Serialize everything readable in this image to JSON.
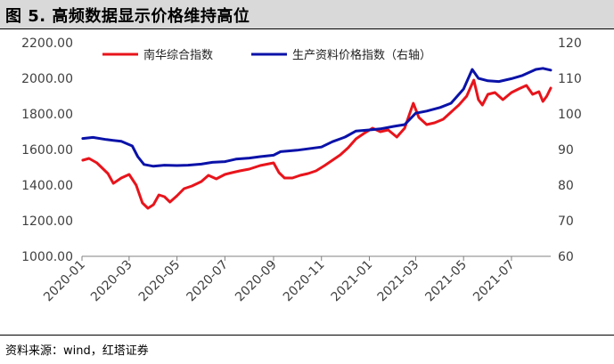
{
  "header": {
    "title": "图 5. 高频数据显示价格维持高位"
  },
  "footer": {
    "source": "资料来源：wind，红塔证券"
  },
  "colors": {
    "red": "#e8141b",
    "blue": "#0a12a8"
  },
  "chart_data": {
    "type": "line",
    "title": "图 5. 高频数据显示价格维持高位",
    "xlabel": "",
    "ylabel_left": "",
    "ylabel_right": "",
    "x_ticks": [
      "2020-01",
      "2020-03",
      "2020-05",
      "2020-07",
      "2020-09",
      "2020-11",
      "2021-01",
      "2021-03",
      "2021-05",
      "2021-07"
    ],
    "x_range": [
      "2020-01-01",
      "2021-08-20"
    ],
    "y_left_ticks": [
      "1000.00",
      "1200.00",
      "1400.00",
      "1600.00",
      "1800.00",
      "2000.00",
      "2200.00"
    ],
    "y_left_range": [
      1000,
      2200
    ],
    "y_right_ticks": [
      "60",
      "70",
      "80",
      "90",
      "100",
      "110",
      "120"
    ],
    "y_right_range": [
      60,
      120
    ],
    "grid": false,
    "legend_position": "top",
    "series": [
      {
        "name": "南华综合指数",
        "axis": "left",
        "color": "#e8141b",
        "points": [
          [
            "2020-01-02",
            1540
          ],
          [
            "2020-01-10",
            1550
          ],
          [
            "2020-01-20",
            1525
          ],
          [
            "2020-02-03",
            1465
          ],
          [
            "2020-02-10",
            1410
          ],
          [
            "2020-02-20",
            1440
          ],
          [
            "2020-03-01",
            1460
          ],
          [
            "2020-03-10",
            1400
          ],
          [
            "2020-03-18",
            1300
          ],
          [
            "2020-03-25",
            1270
          ],
          [
            "2020-04-01",
            1290
          ],
          [
            "2020-04-08",
            1345
          ],
          [
            "2020-04-15",
            1335
          ],
          [
            "2020-04-22",
            1305
          ],
          [
            "2020-05-01",
            1340
          ],
          [
            "2020-05-10",
            1380
          ],
          [
            "2020-05-20",
            1395
          ],
          [
            "2020-06-01",
            1420
          ],
          [
            "2020-06-10",
            1455
          ],
          [
            "2020-06-20",
            1435
          ],
          [
            "2020-07-01",
            1460
          ],
          [
            "2020-07-10",
            1470
          ],
          [
            "2020-07-20",
            1480
          ],
          [
            "2020-08-01",
            1490
          ],
          [
            "2020-08-15",
            1510
          ],
          [
            "2020-09-01",
            1525
          ],
          [
            "2020-09-08",
            1470
          ],
          [
            "2020-09-15",
            1440
          ],
          [
            "2020-09-25",
            1440
          ],
          [
            "2020-10-05",
            1455
          ],
          [
            "2020-10-15",
            1465
          ],
          [
            "2020-10-25",
            1480
          ],
          [
            "2020-11-05",
            1510
          ],
          [
            "2020-11-15",
            1540
          ],
          [
            "2020-11-25",
            1570
          ],
          [
            "2020-12-05",
            1610
          ],
          [
            "2020-12-15",
            1660
          ],
          [
            "2020-12-25",
            1690
          ],
          [
            "2021-01-05",
            1720
          ],
          [
            "2021-01-15",
            1700
          ],
          [
            "2021-01-25",
            1710
          ],
          [
            "2021-02-05",
            1670
          ],
          [
            "2021-02-15",
            1720
          ],
          [
            "2021-02-22",
            1810
          ],
          [
            "2021-02-26",
            1860
          ],
          [
            "2021-03-05",
            1780
          ],
          [
            "2021-03-15",
            1740
          ],
          [
            "2021-03-25",
            1750
          ],
          [
            "2021-04-05",
            1770
          ],
          [
            "2021-04-15",
            1810
          ],
          [
            "2021-04-25",
            1850
          ],
          [
            "2021-05-05",
            1900
          ],
          [
            "2021-05-10",
            1950
          ],
          [
            "2021-05-14",
            1990
          ],
          [
            "2021-05-20",
            1880
          ],
          [
            "2021-05-25",
            1850
          ],
          [
            "2021-06-01",
            1910
          ],
          [
            "2021-06-10",
            1920
          ],
          [
            "2021-06-20",
            1880
          ],
          [
            "2021-07-01",
            1920
          ],
          [
            "2021-07-10",
            1940
          ],
          [
            "2021-07-20",
            1960
          ],
          [
            "2021-07-28",
            1910
          ],
          [
            "2021-08-05",
            1925
          ],
          [
            "2021-08-10",
            1870
          ],
          [
            "2021-08-15",
            1900
          ],
          [
            "2021-08-20",
            1945
          ]
        ]
      },
      {
        "name": "生产资料价格指数（右轴）",
        "axis": "right",
        "color": "#0a12a8",
        "points": [
          [
            "2020-01-02",
            93.1
          ],
          [
            "2020-01-15",
            93.4
          ],
          [
            "2020-02-01",
            92.8
          ],
          [
            "2020-02-20",
            92.3
          ],
          [
            "2020-03-05",
            91.0
          ],
          [
            "2020-03-12",
            88.0
          ],
          [
            "2020-03-20",
            85.8
          ],
          [
            "2020-04-01",
            85.3
          ],
          [
            "2020-04-15",
            85.6
          ],
          [
            "2020-05-01",
            85.5
          ],
          [
            "2020-05-15",
            85.6
          ],
          [
            "2020-06-01",
            85.9
          ],
          [
            "2020-06-15",
            86.4
          ],
          [
            "2020-07-01",
            86.6
          ],
          [
            "2020-07-15",
            87.3
          ],
          [
            "2020-08-01",
            87.6
          ],
          [
            "2020-08-15",
            88.0
          ],
          [
            "2020-09-01",
            88.4
          ],
          [
            "2020-09-10",
            89.4
          ],
          [
            "2020-09-20",
            89.6
          ],
          [
            "2020-10-01",
            89.8
          ],
          [
            "2020-10-15",
            90.2
          ],
          [
            "2020-11-01",
            90.7
          ],
          [
            "2020-11-15",
            92.2
          ],
          [
            "2020-12-01",
            93.5
          ],
          [
            "2020-12-15",
            95.2
          ],
          [
            "2021-01-01",
            95.5
          ],
          [
            "2021-01-15",
            95.8
          ],
          [
            "2021-02-01",
            96.5
          ],
          [
            "2021-02-15",
            97.0
          ],
          [
            "2021-03-01",
            100.2
          ],
          [
            "2021-03-15",
            100.8
          ],
          [
            "2021-04-01",
            101.8
          ],
          [
            "2021-04-15",
            103.0
          ],
          [
            "2021-05-01",
            107.0
          ],
          [
            "2021-05-12",
            112.5
          ],
          [
            "2021-05-20",
            110.0
          ],
          [
            "2021-06-01",
            109.3
          ],
          [
            "2021-06-15",
            109.1
          ],
          [
            "2021-07-01",
            109.9
          ],
          [
            "2021-07-15",
            110.8
          ],
          [
            "2021-08-01",
            112.5
          ],
          [
            "2021-08-10",
            112.8
          ],
          [
            "2021-08-20",
            112.3
          ]
        ]
      }
    ]
  }
}
